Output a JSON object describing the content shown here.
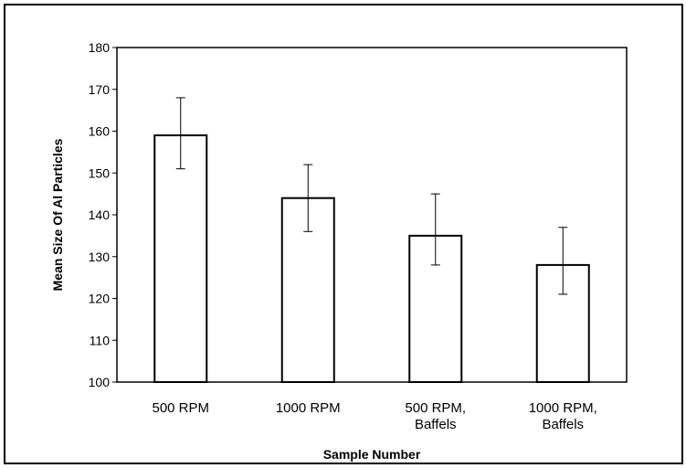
{
  "chart_data": {
    "type": "bar",
    "title": "",
    "xlabel": "Sample Number",
    "ylabel": "Mean Size Of Al Particles",
    "ylim": [
      100,
      180
    ],
    "yticks": [
      100,
      110,
      120,
      130,
      140,
      150,
      160,
      170,
      180
    ],
    "categories": [
      [
        "500 RPM"
      ],
      [
        "1000 RPM"
      ],
      [
        "500 RPM,",
        "Baffels"
      ],
      [
        "1000 RPM,",
        "Baffels"
      ]
    ],
    "values": [
      159,
      144,
      135,
      128
    ],
    "error_low": [
      151,
      136,
      128,
      121
    ],
    "error_high": [
      168,
      152,
      145,
      137
    ],
    "grid": false,
    "legend": "none",
    "colors": {
      "bar_fill": "#ffffff",
      "bar_stroke": "#000000"
    }
  }
}
